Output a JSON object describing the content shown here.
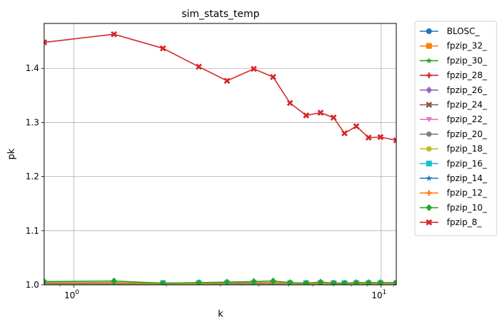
{
  "chart_data": {
    "type": "line",
    "title": "sim_stats_temp",
    "xlabel": "k",
    "ylabel": "pk",
    "xscale": "log",
    "xlim": [
      0.8,
      11.2
    ],
    "ylim": [
      1.0,
      1.483
    ],
    "grid": true,
    "legend_position": "outside-right",
    "x_ticks": [
      {
        "value": 1,
        "base": "10",
        "exp": "0"
      },
      {
        "value": 10,
        "base": "10",
        "exp": "1"
      }
    ],
    "y_ticks": [
      {
        "value": 1.0,
        "label": "1.0"
      },
      {
        "value": 1.1,
        "label": "1.1"
      },
      {
        "value": 1.2,
        "label": "1.2"
      },
      {
        "value": 1.3,
        "label": "1.3"
      },
      {
        "value": 1.4,
        "label": "1.4"
      }
    ],
    "x": [
      0.8,
      1.35,
      1.95,
      2.55,
      3.15,
      3.85,
      4.45,
      5.05,
      5.7,
      6.35,
      7.0,
      7.6,
      8.3,
      9.1,
      9.95,
      11.2
    ],
    "series": [
      {
        "name": "BLOSC_",
        "color": "#1f77b4",
        "marker": "circle",
        "values": [
          1.001,
          1.001,
          1.001,
          1.001,
          1.001,
          1.001,
          1.001,
          1.001,
          1.001,
          1.001,
          1.001,
          1.001,
          1.001,
          1.001,
          1.001,
          1.001
        ]
      },
      {
        "name": "fpzip_32_",
        "color": "#ff7f0e",
        "marker": "square",
        "values": [
          1.001,
          1.001,
          1.001,
          1.001,
          1.001,
          1.001,
          1.001,
          1.001,
          1.001,
          1.001,
          1.001,
          1.001,
          1.001,
          1.001,
          1.001,
          1.001
        ]
      },
      {
        "name": "fpzip_30_",
        "color": "#2ca02c",
        "marker": "star",
        "values": [
          1.002,
          1.002,
          1.002,
          1.002,
          1.002,
          1.002,
          1.002,
          1.002,
          1.002,
          1.002,
          1.002,
          1.002,
          1.002,
          1.002,
          1.002,
          1.002
        ]
      },
      {
        "name": "fpzip_28_",
        "color": "#d62728",
        "marker": "plus",
        "values": [
          1.002,
          1.002,
          1.002,
          1.002,
          1.002,
          1.002,
          1.002,
          1.002,
          1.002,
          1.002,
          1.002,
          1.002,
          1.002,
          1.002,
          1.002,
          1.002
        ]
      },
      {
        "name": "fpzip_26_",
        "color": "#9467bd",
        "marker": "diamond",
        "values": [
          1.002,
          1.002,
          1.002,
          1.002,
          1.002,
          1.002,
          1.002,
          1.002,
          1.002,
          1.002,
          1.002,
          1.002,
          1.002,
          1.002,
          1.002,
          1.002
        ]
      },
      {
        "name": "fpzip_24_",
        "color": "#8c564b",
        "marker": "x",
        "values": [
          1.002,
          1.002,
          1.002,
          1.002,
          1.002,
          1.002,
          1.002,
          1.002,
          1.002,
          1.002,
          1.002,
          1.002,
          1.002,
          1.002,
          1.002,
          1.002
        ]
      },
      {
        "name": "fpzip_22_",
        "color": "#e377c2",
        "marker": "triangle-down",
        "values": [
          1.002,
          1.002,
          1.002,
          1.002,
          1.002,
          1.002,
          1.002,
          1.002,
          1.002,
          1.002,
          1.002,
          1.002,
          1.002,
          1.002,
          1.002,
          1.002
        ]
      },
      {
        "name": "fpzip_20_",
        "color": "#7f7f7f",
        "marker": "hexagon",
        "values": [
          1.002,
          1.002,
          1.002,
          1.002,
          1.002,
          1.002,
          1.002,
          1.002,
          1.002,
          1.002,
          1.002,
          1.002,
          1.002,
          1.002,
          1.002,
          1.002
        ]
      },
      {
        "name": "fpzip_18_",
        "color": "#bcbd22",
        "marker": "octagon",
        "values": [
          1.002,
          1.002,
          1.002,
          1.002,
          1.002,
          1.002,
          1.002,
          1.002,
          1.002,
          1.002,
          1.002,
          1.002,
          1.002,
          1.002,
          1.002,
          1.002
        ]
      },
      {
        "name": "fpzip_16_",
        "color": "#17becf",
        "marker": "square",
        "values": [
          1.003,
          1.003,
          1.003,
          1.003,
          1.003,
          1.003,
          1.003,
          1.003,
          1.003,
          1.003,
          1.003,
          1.003,
          1.003,
          1.003,
          1.003,
          1.003
        ]
      },
      {
        "name": "fpzip_14_",
        "color": "#1f77b4",
        "marker": "star",
        "values": [
          1.003,
          1.003,
          1.003,
          1.003,
          1.003,
          1.003,
          1.003,
          1.003,
          1.003,
          1.003,
          1.003,
          1.003,
          1.003,
          1.003,
          1.003,
          1.003
        ]
      },
      {
        "name": "fpzip_12_",
        "color": "#ff7f0e",
        "marker": "plus",
        "values": [
          1.004,
          1.004,
          1.003,
          1.003,
          1.004,
          1.004,
          1.004,
          1.003,
          1.003,
          1.003,
          1.003,
          1.003,
          1.003,
          1.003,
          1.003,
          1.003
        ]
      },
      {
        "name": "fpzip_10_",
        "color": "#2ca02c",
        "marker": "diamond",
        "values": [
          1.006,
          1.007,
          1.003,
          1.004,
          1.005,
          1.006,
          1.007,
          1.004,
          1.003,
          1.005,
          1.003,
          1.003,
          1.004,
          1.004,
          1.004,
          1.004
        ]
      },
      {
        "name": "fpzip_8_",
        "color": "#d62728",
        "marker": "x",
        "values": [
          1.448,
          1.463,
          1.437,
          1.403,
          1.377,
          1.399,
          1.384,
          1.336,
          1.313,
          1.318,
          1.309,
          1.28,
          1.293,
          1.272,
          1.273,
          1.267
        ]
      }
    ]
  }
}
